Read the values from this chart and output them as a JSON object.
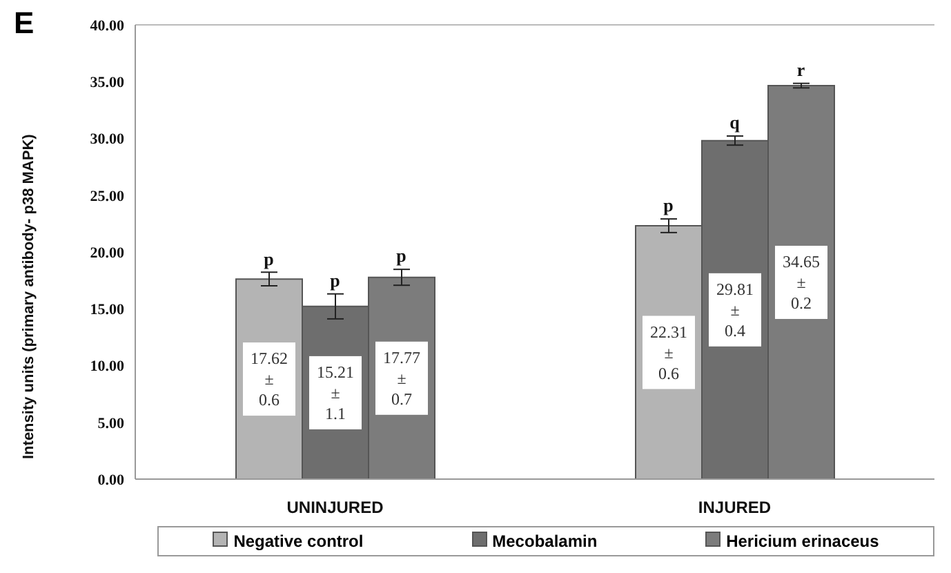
{
  "chart_data": {
    "type": "bar",
    "ylabel": "Intensity units (primary antibody- p38 MAPK)",
    "categories": [
      "UNINJURED",
      "INJURED"
    ],
    "series": [
      {
        "name": "Negative control",
        "color": "#b4b4b4",
        "values": [
          17.62,
          22.31
        ],
        "errors": [
          0.6,
          0.6
        ],
        "value_labels": [
          "17.62 ± 0.6",
          "22.31 ± 0.6"
        ]
      },
      {
        "name": "Mecobalamin",
        "color": "#6e6e6e",
        "values": [
          15.21,
          29.81
        ],
        "errors": [
          1.1,
          0.4
        ],
        "value_labels": [
          "15.21 ± 1.1",
          "29.81 ± 0.4"
        ]
      },
      {
        "name": "Hericium erinaceus",
        "color": "#7c7c7c",
        "values": [
          17.77,
          34.65
        ],
        "errors": [
          0.7,
          0.2
        ],
        "value_labels": [
          "17.77 ± 0.7",
          "34.65 ± 0.2"
        ]
      }
    ],
    "ylim": [
      0,
      40
    ],
    "yticks": [
      {
        "value": 0,
        "label": "0.00"
      },
      {
        "value": 5,
        "label": "5.00"
      },
      {
        "value": 10,
        "label": "10.00"
      },
      {
        "value": 15,
        "label": "15.00"
      },
      {
        "value": 20,
        "label": "20.00"
      },
      {
        "value": 25,
        "label": "25.00"
      },
      {
        "value": 30,
        "label": "30.00"
      },
      {
        "value": 35,
        "label": "35.00"
      },
      {
        "value": 40,
        "label": "40.00"
      }
    ],
    "annotations": [
      "E",
      "p",
      "p",
      "p",
      "p",
      "q",
      "r"
    ],
    "legend": "bottom"
  }
}
